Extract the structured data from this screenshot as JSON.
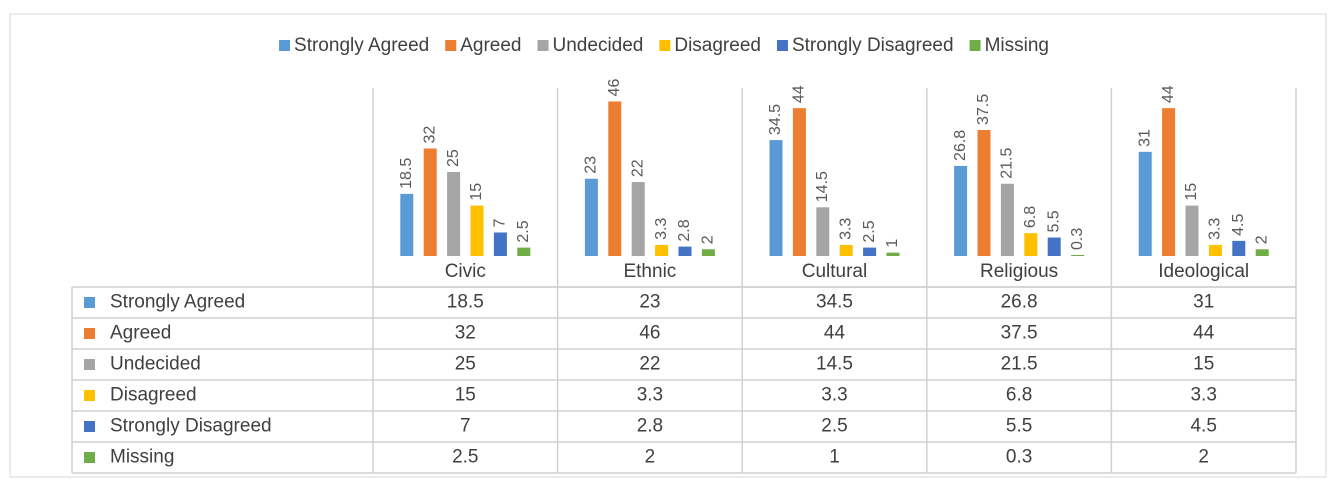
{
  "chart_data": {
    "type": "bar",
    "categories": [
      "Civic",
      "Ethnic",
      "Cultural",
      "Religious",
      "Ideological"
    ],
    "series": [
      {
        "name": "Strongly Agreed",
        "color": "#5b9bd5",
        "values": [
          18.5,
          23,
          34.5,
          26.8,
          31
        ]
      },
      {
        "name": "Agreed",
        "color": "#ed7d31",
        "values": [
          32,
          46,
          44,
          37.5,
          44
        ]
      },
      {
        "name": "Undecided",
        "color": "#a5a5a5",
        "values": [
          25,
          22,
          14.5,
          21.5,
          15
        ]
      },
      {
        "name": "Disagreed",
        "color": "#ffc000",
        "values": [
          15,
          3.3,
          3.3,
          6.8,
          3.3
        ]
      },
      {
        "name": "Strongly Disagreed",
        "color": "#4472c4",
        "values": [
          7,
          2.8,
          2.5,
          5.5,
          4.5
        ]
      },
      {
        "name": "Missing",
        "color": "#70ad47",
        "values": [
          2.5,
          2,
          1,
          0.3,
          2
        ]
      }
    ],
    "ylim": [
      0,
      50
    ],
    "legend": "top",
    "data_table": true
  }
}
